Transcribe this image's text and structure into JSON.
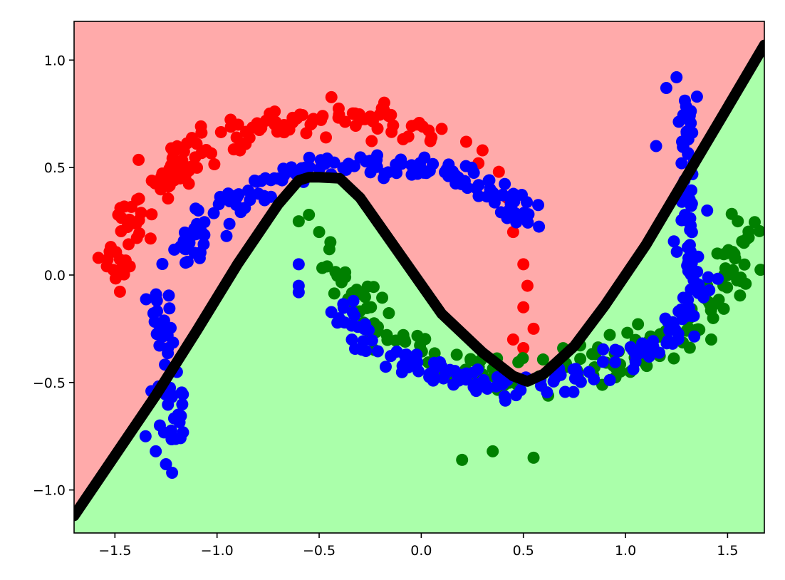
{
  "chart_data": {
    "type": "scatter",
    "title": "",
    "xlabel": "",
    "ylabel": "",
    "xlim": [
      -1.7,
      1.68
    ],
    "ylim": [
      -1.2,
      1.18
    ],
    "grid": false,
    "legend": "none",
    "x_ticks": [
      {
        "value": -1.5,
        "label": "−1.5"
      },
      {
        "value": -1.0,
        "label": "−1.0"
      },
      {
        "value": -0.5,
        "label": "−0.5"
      },
      {
        "value": 0.0,
        "label": "0.0"
      },
      {
        "value": 0.5,
        "label": "0.5"
      },
      {
        "value": 1.0,
        "label": "1.0"
      },
      {
        "value": 1.5,
        "label": "1.5"
      }
    ],
    "y_ticks": [
      {
        "value": -1.0,
        "label": "−1.0"
      },
      {
        "value": -0.5,
        "label": "−0.5"
      },
      {
        "value": 0.0,
        "label": "0.0"
      },
      {
        "value": 0.5,
        "label": "0.5"
      },
      {
        "value": 1.0,
        "label": "1.0"
      }
    ],
    "regions": {
      "upper_color": "#ffaaaa",
      "lower_color": "#aaffaa"
    },
    "decision_boundary": {
      "color": "#000000",
      "points": [
        [
          -1.7,
          -1.12
        ],
        [
          -1.5,
          -0.84
        ],
        [
          -1.3,
          -0.56
        ],
        [
          -1.1,
          -0.26
        ],
        [
          -0.9,
          0.05
        ],
        [
          -0.7,
          0.33
        ],
        [
          -0.6,
          0.44
        ],
        [
          -0.55,
          0.455
        ],
        [
          -0.5,
          0.455
        ],
        [
          -0.4,
          0.45
        ],
        [
          -0.3,
          0.36
        ],
        [
          -0.1,
          0.09
        ],
        [
          0.1,
          -0.18
        ],
        [
          0.3,
          -0.36
        ],
        [
          0.45,
          -0.47
        ],
        [
          0.52,
          -0.495
        ],
        [
          0.6,
          -0.46
        ],
        [
          0.75,
          -0.33
        ],
        [
          0.9,
          -0.14
        ],
        [
          1.1,
          0.14
        ],
        [
          1.3,
          0.46
        ],
        [
          1.5,
          0.78
        ],
        [
          1.68,
          1.07
        ]
      ]
    },
    "series": [
      {
        "color": "#ff0000",
        "arc": {
          "type": "upper_moon",
          "cx": -0.4,
          "cy": -0.05,
          "r": 1.1,
          "theta": [
            1.15,
            3.14
          ],
          "noise": 0.07,
          "count": 150
        },
        "extra_points": [
          [
            0.1,
            0.68
          ],
          [
            0.22,
            0.62
          ],
          [
            0.3,
            0.58
          ],
          [
            0.38,
            0.48
          ],
          [
            0.42,
            0.36
          ],
          [
            0.45,
            0.2
          ],
          [
            0.5,
            0.05
          ],
          [
            0.52,
            -0.05
          ],
          [
            0.5,
            -0.15
          ],
          [
            0.55,
            -0.25
          ],
          [
            0.45,
            -0.3
          ],
          [
            0.5,
            -0.34
          ],
          [
            -0.02,
            0.7
          ],
          [
            0.05,
            0.64
          ],
          [
            0.28,
            0.52
          ]
        ]
      },
      {
        "color": "#008000",
        "arc": {
          "type": "lower_moon",
          "cx": 0.55,
          "cy": 0.3,
          "r": 1.05,
          "theta": [
            3.5,
            6.2
          ],
          "noise": 0.07,
          "count": 170
        },
        "extra_points": [
          [
            -0.6,
            0.25
          ],
          [
            -0.55,
            0.28
          ],
          [
            -0.5,
            0.2
          ],
          [
            -0.45,
            0.12
          ],
          [
            0.2,
            -0.86
          ],
          [
            0.35,
            -0.82
          ],
          [
            0.55,
            -0.85
          ],
          [
            1.58,
            0.15
          ],
          [
            1.55,
            0.25
          ],
          [
            1.45,
            0.1
          ],
          [
            1.4,
            -0.05
          ],
          [
            1.5,
            0.0
          ],
          [
            1.42,
            -0.3
          ]
        ]
      },
      {
        "color": "#0000ff",
        "arc": {
          "type": "mixed",
          "count": 300
        },
        "extra_points": [
          [
            -1.22,
            -0.92
          ],
          [
            -1.25,
            -0.88
          ],
          [
            -1.3,
            -0.82
          ],
          [
            -1.35,
            -0.75
          ],
          [
            -1.28,
            -0.7
          ],
          [
            1.25,
            0.92
          ],
          [
            1.2,
            0.87
          ],
          [
            1.35,
            0.83
          ],
          [
            1.3,
            0.75
          ],
          [
            1.15,
            0.6
          ],
          [
            1.4,
            0.3
          ],
          [
            -0.6,
            0.05
          ],
          [
            -0.6,
            -0.05
          ],
          [
            -0.6,
            -0.08
          ]
        ]
      }
    ]
  }
}
